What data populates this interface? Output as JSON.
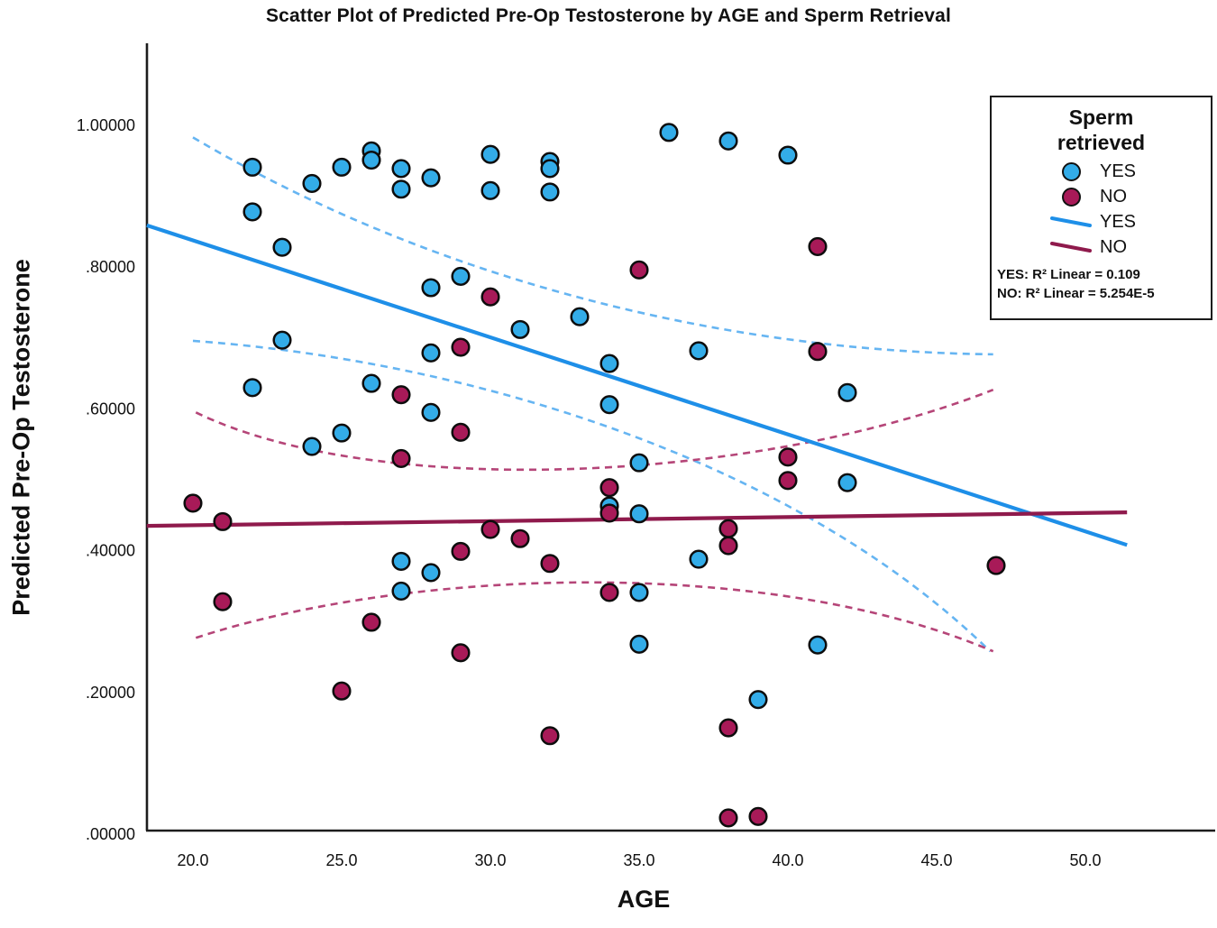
{
  "chart_data": {
    "type": "scatter",
    "title": "Scatter Plot of Predicted Pre-Op Testosterone by AGE and Sperm Retrieval",
    "xlabel": "AGE",
    "ylabel": "Predicted Pre-Op Testosterone",
    "x_ticks": [
      "20.0",
      "25.0",
      "30.0",
      "35.0",
      "40.0",
      "45.0",
      "50.0"
    ],
    "x_tick_values": [
      20,
      25,
      30,
      35,
      40,
      45,
      50
    ],
    "y_ticks": [
      "1.00000",
      ".80000",
      ".60000",
      ".40000",
      ".20000",
      ".00000"
    ],
    "y_tick_values": [
      1.0,
      0.8,
      0.6,
      0.4,
      0.2,
      0.0
    ],
    "xlim": [
      18.45,
      54.4
    ],
    "ylim": [
      0,
      1.116
    ],
    "grid": false,
    "legend_position": "upper-right",
    "colors": {
      "yes_point": "#33ACE8",
      "no_point": "#A81A58",
      "yes_line": "#1E8FE8",
      "no_line": "#8F1A4C",
      "yes_ci": "#66B5F2",
      "no_ci": "#B54578",
      "axis": "#1c1c1c"
    },
    "series": [
      {
        "name": "YES",
        "marker_color": "#33ACE8",
        "points": [
          [
            22,
            0.941
          ],
          [
            24,
            0.918
          ],
          [
            25,
            0.941
          ],
          [
            26,
            0.964
          ],
          [
            26,
            0.951
          ],
          [
            27,
            0.939
          ],
          [
            27,
            0.91
          ],
          [
            28,
            0.926
          ],
          [
            30,
            0.959
          ],
          [
            30,
            0.908
          ],
          [
            22,
            0.878
          ],
          [
            23,
            0.828
          ],
          [
            29,
            0.787
          ],
          [
            28,
            0.771
          ],
          [
            23,
            0.697
          ],
          [
            28,
            0.679
          ],
          [
            31,
            0.712
          ],
          [
            36,
            0.99
          ],
          [
            38,
            0.978
          ],
          [
            40,
            0.958
          ],
          [
            32,
            0.949
          ],
          [
            32,
            0.939
          ],
          [
            32,
            0.906
          ],
          [
            33,
            0.73
          ],
          [
            37,
            0.682
          ],
          [
            34,
            0.664
          ],
          [
            34,
            0.606
          ],
          [
            42,
            0.623
          ],
          [
            35,
            0.524
          ],
          [
            34,
            0.463
          ],
          [
            35,
            0.452
          ],
          [
            42,
            0.496
          ],
          [
            22,
            0.63
          ],
          [
            26,
            0.636
          ],
          [
            28,
            0.595
          ],
          [
            25,
            0.566
          ],
          [
            24,
            0.547
          ],
          [
            27,
            0.385
          ],
          [
            28,
            0.369
          ],
          [
            27,
            0.343
          ],
          [
            37,
            0.388
          ],
          [
            35,
            0.341
          ],
          [
            35,
            0.268
          ],
          [
            41,
            0.267
          ],
          [
            39,
            0.19
          ]
        ]
      },
      {
        "name": "NO",
        "marker_color": "#A81A58",
        "points": [
          [
            30,
            0.758
          ],
          [
            29,
            0.687
          ],
          [
            41,
            0.829
          ],
          [
            35,
            0.796
          ],
          [
            41,
            0.681
          ],
          [
            27,
            0.62
          ],
          [
            29,
            0.567
          ],
          [
            27,
            0.53
          ],
          [
            20,
            0.467
          ],
          [
            21,
            0.441
          ],
          [
            30,
            0.43
          ],
          [
            31,
            0.417
          ],
          [
            29,
            0.399
          ],
          [
            32,
            0.382
          ],
          [
            21,
            0.328
          ],
          [
            26,
            0.299
          ],
          [
            34,
            0.489
          ],
          [
            34,
            0.453
          ],
          [
            40,
            0.532
          ],
          [
            40,
            0.499
          ],
          [
            38,
            0.431
          ],
          [
            38,
            0.407
          ],
          [
            34,
            0.341
          ],
          [
            29,
            0.256
          ],
          [
            25,
            0.202
          ],
          [
            32,
            0.139
          ],
          [
            38,
            0.15
          ],
          [
            38,
            0.023
          ],
          [
            39,
            0.025
          ],
          [
            47,
            0.379
          ]
        ]
      }
    ],
    "fit_lines": [
      {
        "name": "YES",
        "color": "#1E8FE8",
        "x": [
          18.45,
          51.4
        ],
        "y": [
          0.859,
          0.408
        ],
        "r2": "0.109"
      },
      {
        "name": "NO",
        "color": "#8F1A4C",
        "x": [
          18.45,
          51.4
        ],
        "y": [
          0.435,
          0.454
        ],
        "r2": "5.254E-5"
      }
    ],
    "confidence_bands": [
      {
        "series": "YES",
        "bound": "upper",
        "color": "#66B5F2",
        "bezier": [
          [
            20.0,
            0.983
          ],
          [
            28.1,
            0.782
          ],
          [
            37.8,
            0.681
          ],
          [
            46.9,
            0.677
          ]
        ]
      },
      {
        "series": "YES",
        "bound": "lower",
        "color": "#66B5F2",
        "bezier": [
          [
            20.0,
            0.696
          ],
          [
            29.3,
            0.668
          ],
          [
            40.2,
            0.528
          ],
          [
            46.8,
            0.258
          ]
        ]
      },
      {
        "series": "NO",
        "bound": "upper",
        "color": "#B54578",
        "bezier": [
          [
            20.1,
            0.595
          ],
          [
            26.2,
            0.471
          ],
          [
            39.0,
            0.496
          ],
          [
            46.9,
            0.627
          ]
        ]
      },
      {
        "series": "NO",
        "bound": "lower",
        "color": "#B54578",
        "bezier": [
          [
            20.1,
            0.277
          ],
          [
            27.2,
            0.375
          ],
          [
            39.3,
            0.394
          ],
          [
            46.9,
            0.258
          ]
        ]
      }
    ],
    "legend": {
      "title": "Sperm retrieved",
      "entries": [
        {
          "type": "marker",
          "label": "YES",
          "color": "#33ACE8"
        },
        {
          "type": "marker",
          "label": "NO",
          "color": "#A81A58"
        },
        {
          "type": "line",
          "label": "YES",
          "color": "#1E8FE8"
        },
        {
          "type": "line",
          "label": "NO",
          "color": "#8F1A4C"
        }
      ],
      "r2_yes": "YES: R² Linear = 0.109",
      "r2_no": "NO: R² Linear = 5.254E-5"
    }
  }
}
